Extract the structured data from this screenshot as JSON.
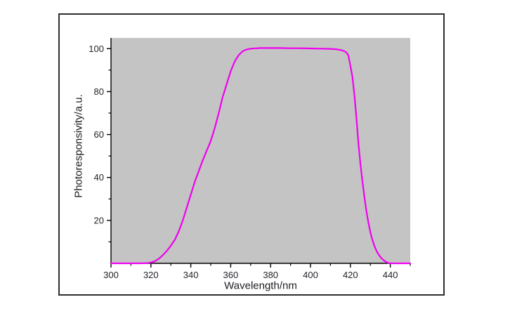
{
  "window": {
    "page_bg_color": "#ffffff",
    "frame_border_color": "#2e2e2e"
  },
  "chart": {
    "plot_bg_color": "#c4c4c4",
    "axis_color": "#000000",
    "tick_label_color": "#23232b",
    "curve_color": "#f000f0",
    "x_axis": {
      "label": "Wavelength/nm",
      "major_ticks": [
        300,
        320,
        340,
        360,
        380,
        400,
        420,
        440
      ],
      "minor_ticks": [
        310,
        330,
        350,
        370,
        390,
        410,
        430,
        450
      ]
    },
    "y_axis": {
      "label": "Photoresponsivity/a.u.",
      "major_ticks": [
        20,
        40,
        60,
        80,
        100
      ],
      "minor_ticks": [
        10,
        30,
        50,
        70,
        90
      ]
    }
  },
  "chart_data": {
    "type": "line",
    "title": "",
    "xlabel": "Wavelength/nm",
    "ylabel": "Photoresponsivity/a.u.",
    "xlim": [
      300,
      450
    ],
    "ylim": [
      0,
      105
    ],
    "grid": false,
    "legend": null,
    "series": [
      {
        "name": "photoresponsivity",
        "color": "#f000f0",
        "x": [
          300,
          305,
          310,
          315,
          318,
          320,
          322,
          324,
          326,
          328,
          330,
          332,
          334,
          336,
          338,
          340,
          342,
          344,
          346,
          348,
          350,
          352,
          354,
          356,
          358,
          360,
          362,
          364,
          366,
          368,
          370,
          375,
          380,
          385,
          390,
          395,
          400,
          405,
          410,
          413,
          415,
          417,
          418,
          419,
          420,
          421,
          422,
          423,
          424,
          425,
          426,
          427,
          428,
          429,
          430,
          431,
          432,
          433,
          434,
          435,
          436,
          437,
          438,
          439,
          440,
          442,
          445,
          450
        ],
        "y": [
          0,
          0,
          0,
          0,
          0.1,
          0.4,
          1,
          2.2,
          3.8,
          5.8,
          8.2,
          11,
          15,
          20,
          26,
          32,
          38,
          43,
          48,
          52.5,
          57,
          63,
          70,
          77.5,
          83.5,
          89.5,
          94,
          97,
          98.8,
          99.6,
          100,
          100.3,
          100.3,
          100.3,
          100.2,
          100.2,
          100.1,
          100,
          99.9,
          99.7,
          99.4,
          98.8,
          98.2,
          96.8,
          92,
          87,
          78.5,
          68,
          56,
          46.5,
          38.5,
          31,
          24.5,
          19,
          14.5,
          11,
          8.2,
          6,
          4.3,
          3,
          2,
          1.2,
          0.6,
          0.2,
          0,
          0,
          0,
          0
        ]
      }
    ]
  }
}
